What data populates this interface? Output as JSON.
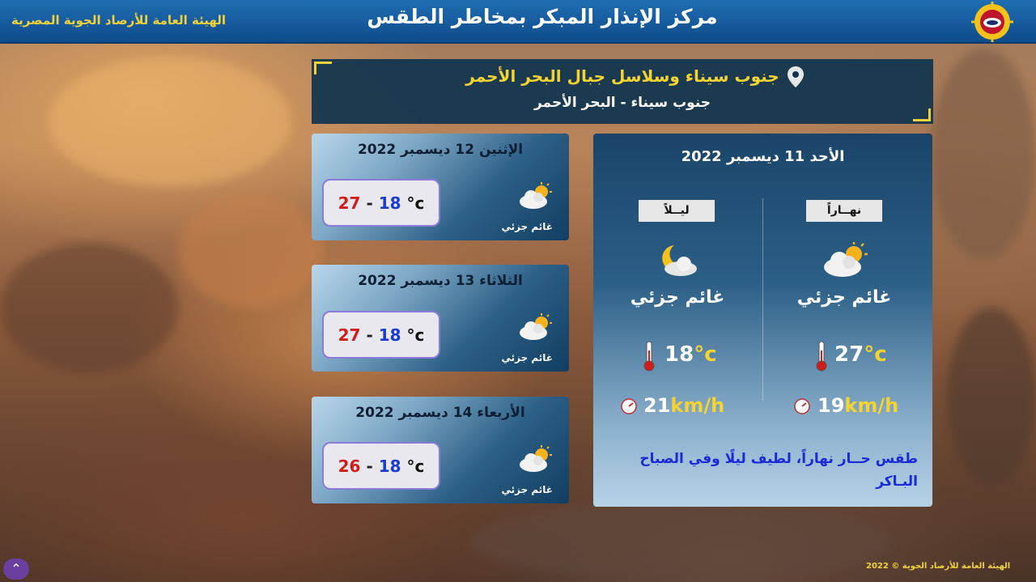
{
  "header": {
    "title": "مركز الإنذار المبكر بمخاطر الطقس",
    "org": "الهيئة العامة للأرصاد الجوية المصرية",
    "logo_icon": "ema-logo-icon"
  },
  "location": {
    "title": "جنوب سيناء وسلاسل جبال البحر الأحمر",
    "subtitle": "جنوب سيناء - البحر الأحمر",
    "icon": "map-pin-icon"
  },
  "forecast": [
    {
      "day": "الإثنين 12 ديسمبر 2022",
      "max": "27",
      "min": "18",
      "unit": "°c",
      "condition": "غائم جزئي",
      "icon": "partly-cloudy-icon"
    },
    {
      "day": "الثلاثاء 13 ديسمبر 2022",
      "max": "27",
      "min": "18",
      "unit": "°c",
      "condition": "غائم جزئي",
      "icon": "partly-cloudy-icon"
    },
    {
      "day": "الأربعاء 14 ديسمبر 2022",
      "max": "26",
      "min": "18",
      "unit": "°c",
      "condition": "غائم جزئي",
      "icon": "partly-cloudy-icon"
    }
  ],
  "today": {
    "title": "الأحد 11 ديسمبر 2022",
    "day": {
      "label": "نهــاراً",
      "condition": "غائم جزئي",
      "temp": "27",
      "temp_unit": "°c",
      "wind": "19",
      "wind_unit": "km/h",
      "icon": "partly-cloudy-icon"
    },
    "night": {
      "label": "ليــلاً",
      "condition": "غائم جزئي",
      "temp": "18",
      "temp_unit": "°c",
      "wind": "21",
      "wind_unit": "km/h",
      "icon": "cloudy-night-icon"
    },
    "description": "طقس حــار نهاراً، لطيف ليلًا وفي الصباح البـاكر"
  },
  "footer": {
    "copyright": "الهيئة العامة للأرصاد الجوية © 2022"
  },
  "colors": {
    "header_bg": "#1f6db3",
    "accent_yellow": "#f5d431",
    "max_temp": "#d11c1c",
    "min_temp": "#1c3cd1",
    "description": "#1a2ad8"
  }
}
